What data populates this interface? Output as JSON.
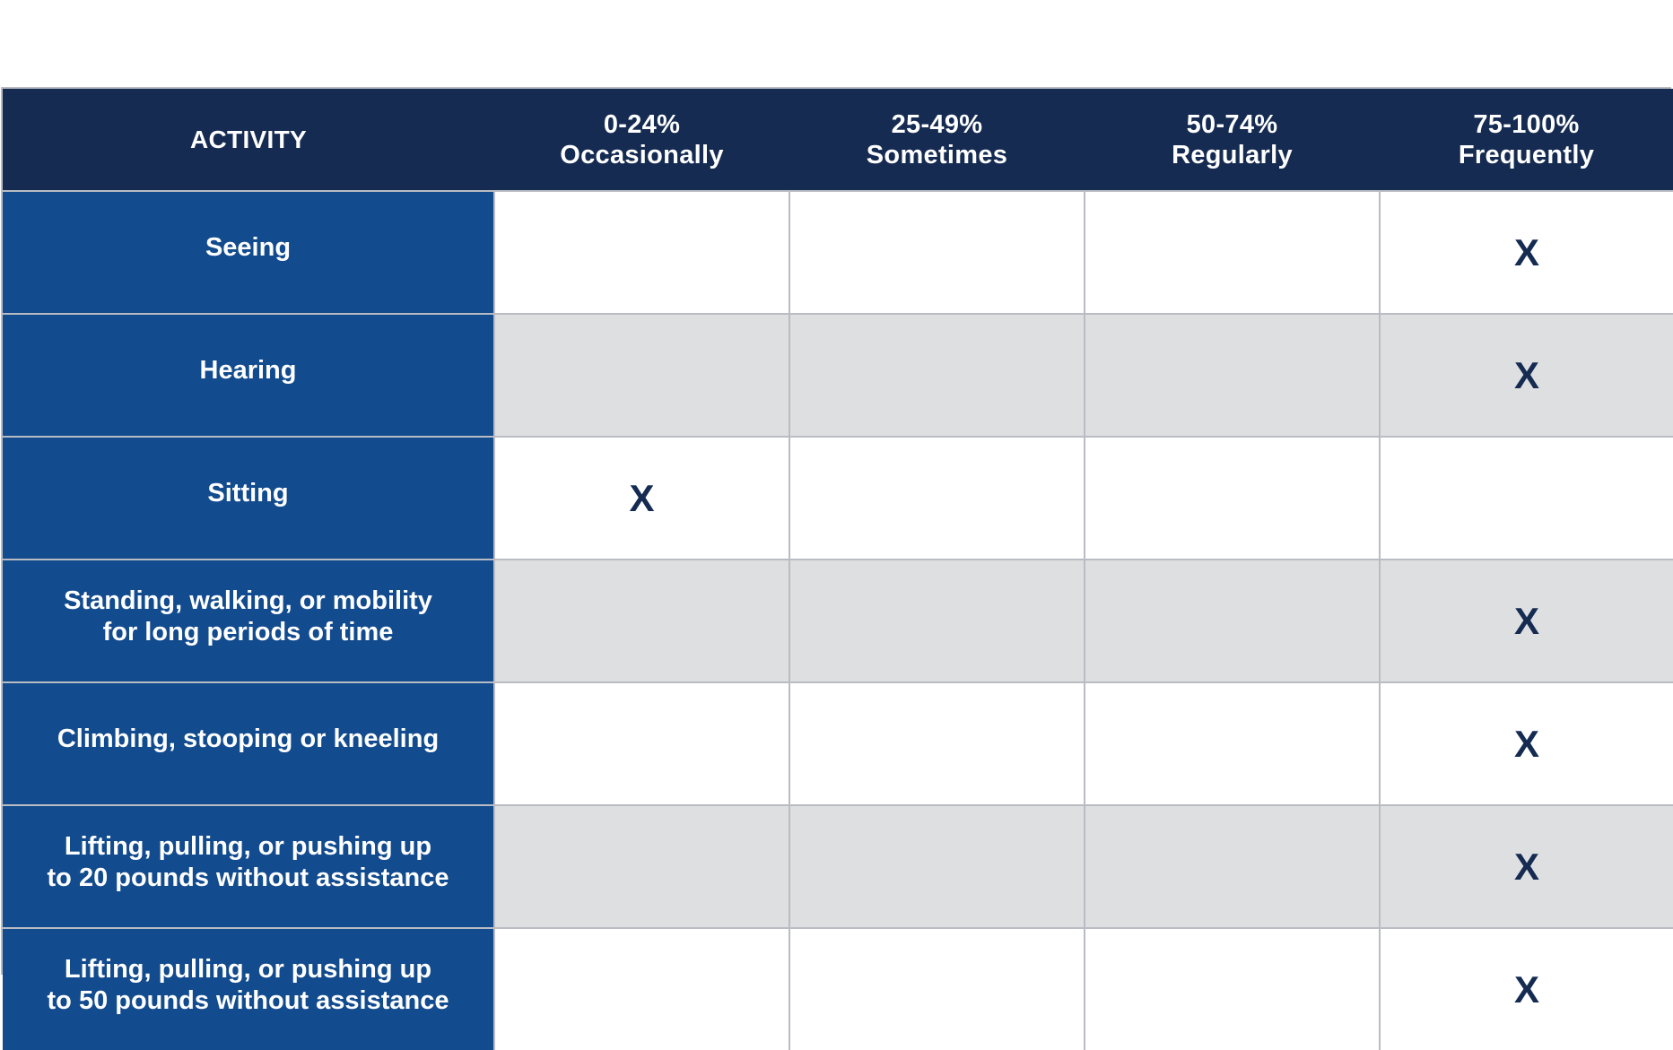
{
  "table": {
    "columns": [
      {
        "line1": "ACTIVITY",
        "line2": ""
      },
      {
        "line1": "0-24%",
        "line2": "Occasionally"
      },
      {
        "line1": "25-49%",
        "line2": "Sometimes"
      },
      {
        "line1": "50-74%",
        "line2": "Regularly"
      },
      {
        "line1": "75-100%",
        "line2": "Frequently"
      }
    ],
    "rows": [
      {
        "activity": [
          "Seeing"
        ],
        "marks": [
          "",
          "",
          "",
          "X"
        ]
      },
      {
        "activity": [
          "Hearing"
        ],
        "marks": [
          "",
          "",
          "",
          "X"
        ]
      },
      {
        "activity": [
          "Sitting"
        ],
        "marks": [
          "X",
          "",
          "",
          ""
        ]
      },
      {
        "activity": [
          "Standing, walking, or mobility",
          "for long periods of time"
        ],
        "marks": [
          "",
          "",
          "",
          "X"
        ]
      },
      {
        "activity": [
          "Climbing, stooping or kneeling"
        ],
        "marks": [
          "",
          "",
          "",
          "X"
        ]
      },
      {
        "activity": [
          "Lifting, pulling, or pushing up",
          "to 20 pounds without assistance"
        ],
        "marks": [
          "",
          "",
          "",
          "X"
        ]
      },
      {
        "activity": [
          "Lifting, pulling, or pushing up",
          "to 50 pounds without assistance"
        ],
        "marks": [
          "",
          "",
          "",
          "X"
        ]
      }
    ]
  },
  "colors": {
    "header_bg": "#152b52",
    "activity_bg": "#124b8e",
    "row_alt_bg": "#dedfe1",
    "mark_color": "#152b52",
    "border": "#b9bcc2"
  }
}
